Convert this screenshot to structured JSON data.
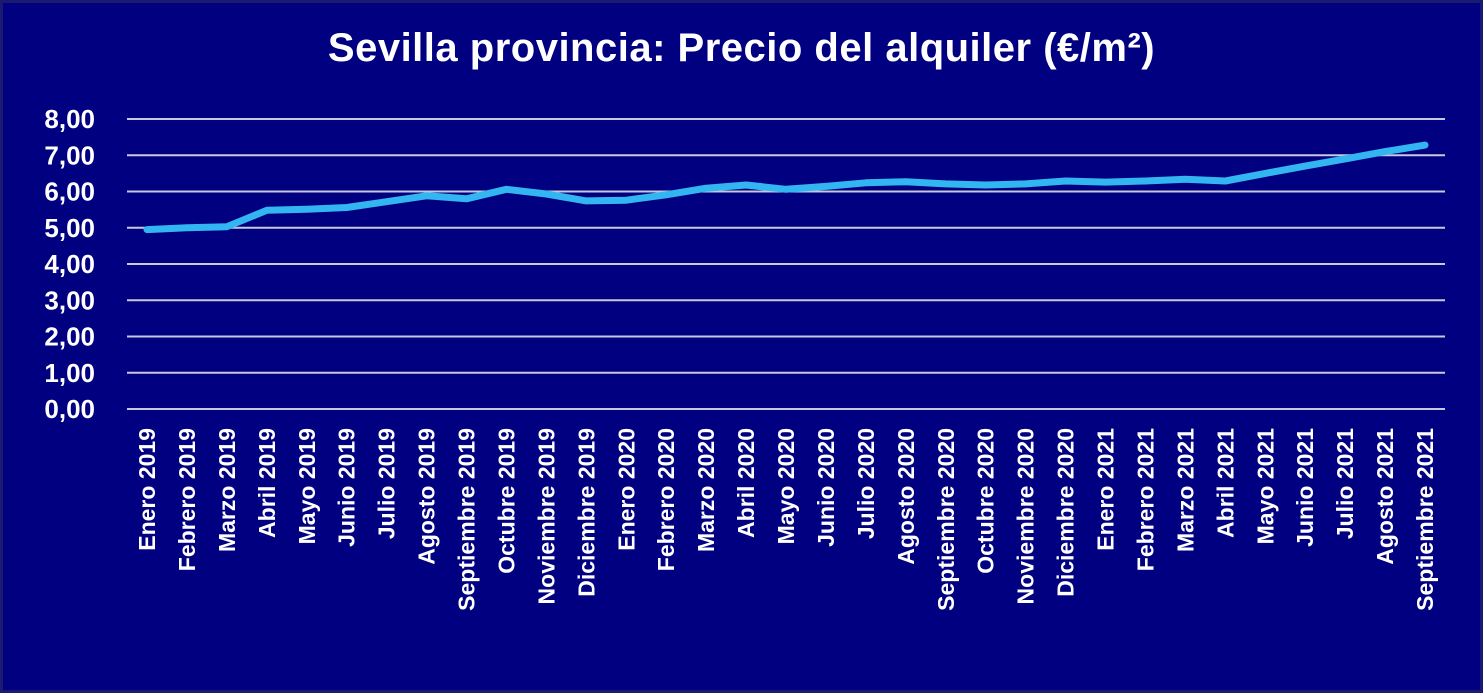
{
  "chart_data": {
    "type": "line",
    "title": "Sevilla provincia: Precio del alquiler (€/m²)",
    "xlabel": "",
    "ylabel": "",
    "ylim": [
      0,
      8
    ],
    "y_ticks": [
      "0,00",
      "1,00",
      "2,00",
      "3,00",
      "4,00",
      "5,00",
      "6,00",
      "7,00",
      "8,00"
    ],
    "grid": true,
    "categories": [
      "Enero 2019",
      "Febrero 2019",
      "Marzo 2019",
      "Abril 2019",
      "Mayo 2019",
      "Junio 2019",
      "Julio 2019",
      "Agosto 2019",
      "Septiembre 2019",
      "Octubre 2019",
      "Noviembre 2019",
      "Diciembre 2019",
      "Enero 2020",
      "Febrero 2020",
      "Marzo 2020",
      "Abril 2020",
      "Mayo 2020",
      "Junio 2020",
      "Julio 2020",
      "Agosto 2020",
      "Septiembre 2020",
      "Octubre 2020",
      "Noviembre 2020",
      "Diciembre 2020",
      "Enero 2021",
      "Febrero 2021",
      "Marzo 2021",
      "Abril 2021",
      "Mayo 2021",
      "Junio 2021",
      "Julio 2021",
      "Agosto 2021",
      "Septiembre 2021"
    ],
    "values": [
      4.95,
      5.0,
      5.03,
      5.48,
      5.51,
      5.56,
      5.72,
      5.88,
      5.8,
      6.06,
      5.93,
      5.74,
      5.76,
      5.91,
      6.09,
      6.18,
      6.06,
      6.14,
      6.24,
      6.27,
      6.21,
      6.18,
      6.21,
      6.29,
      6.26,
      6.29,
      6.34,
      6.29,
      6.5,
      6.7,
      6.9,
      7.1,
      7.28
    ],
    "colors": {
      "background": "#000080",
      "line": "#33b5f2",
      "grid": "#c8c8dc",
      "text": "#ffffff"
    }
  }
}
